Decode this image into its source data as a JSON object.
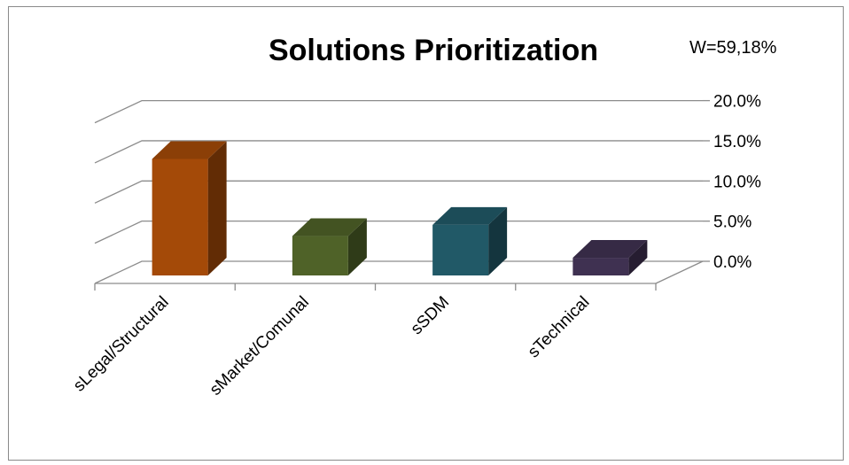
{
  "chart_data": {
    "type": "bar",
    "title": "Solutions Prioritization",
    "annotation": "W=59,18%",
    "categories": [
      "sLegal/Structural",
      "sMarket/Comunal",
      "sSDM",
      "sTechnical"
    ],
    "values": [
      14.5,
      4.9,
      6.3,
      2.2
    ],
    "colors": [
      "#a44a08",
      "#4f6228",
      "#215967",
      "#3f3151"
    ],
    "ylim": [
      0,
      20
    ],
    "yticks": [
      "0.0%",
      "5.0%",
      "10.0%",
      "15.0%",
      "20.0%"
    ],
    "grid": true,
    "style": "3d-column"
  }
}
